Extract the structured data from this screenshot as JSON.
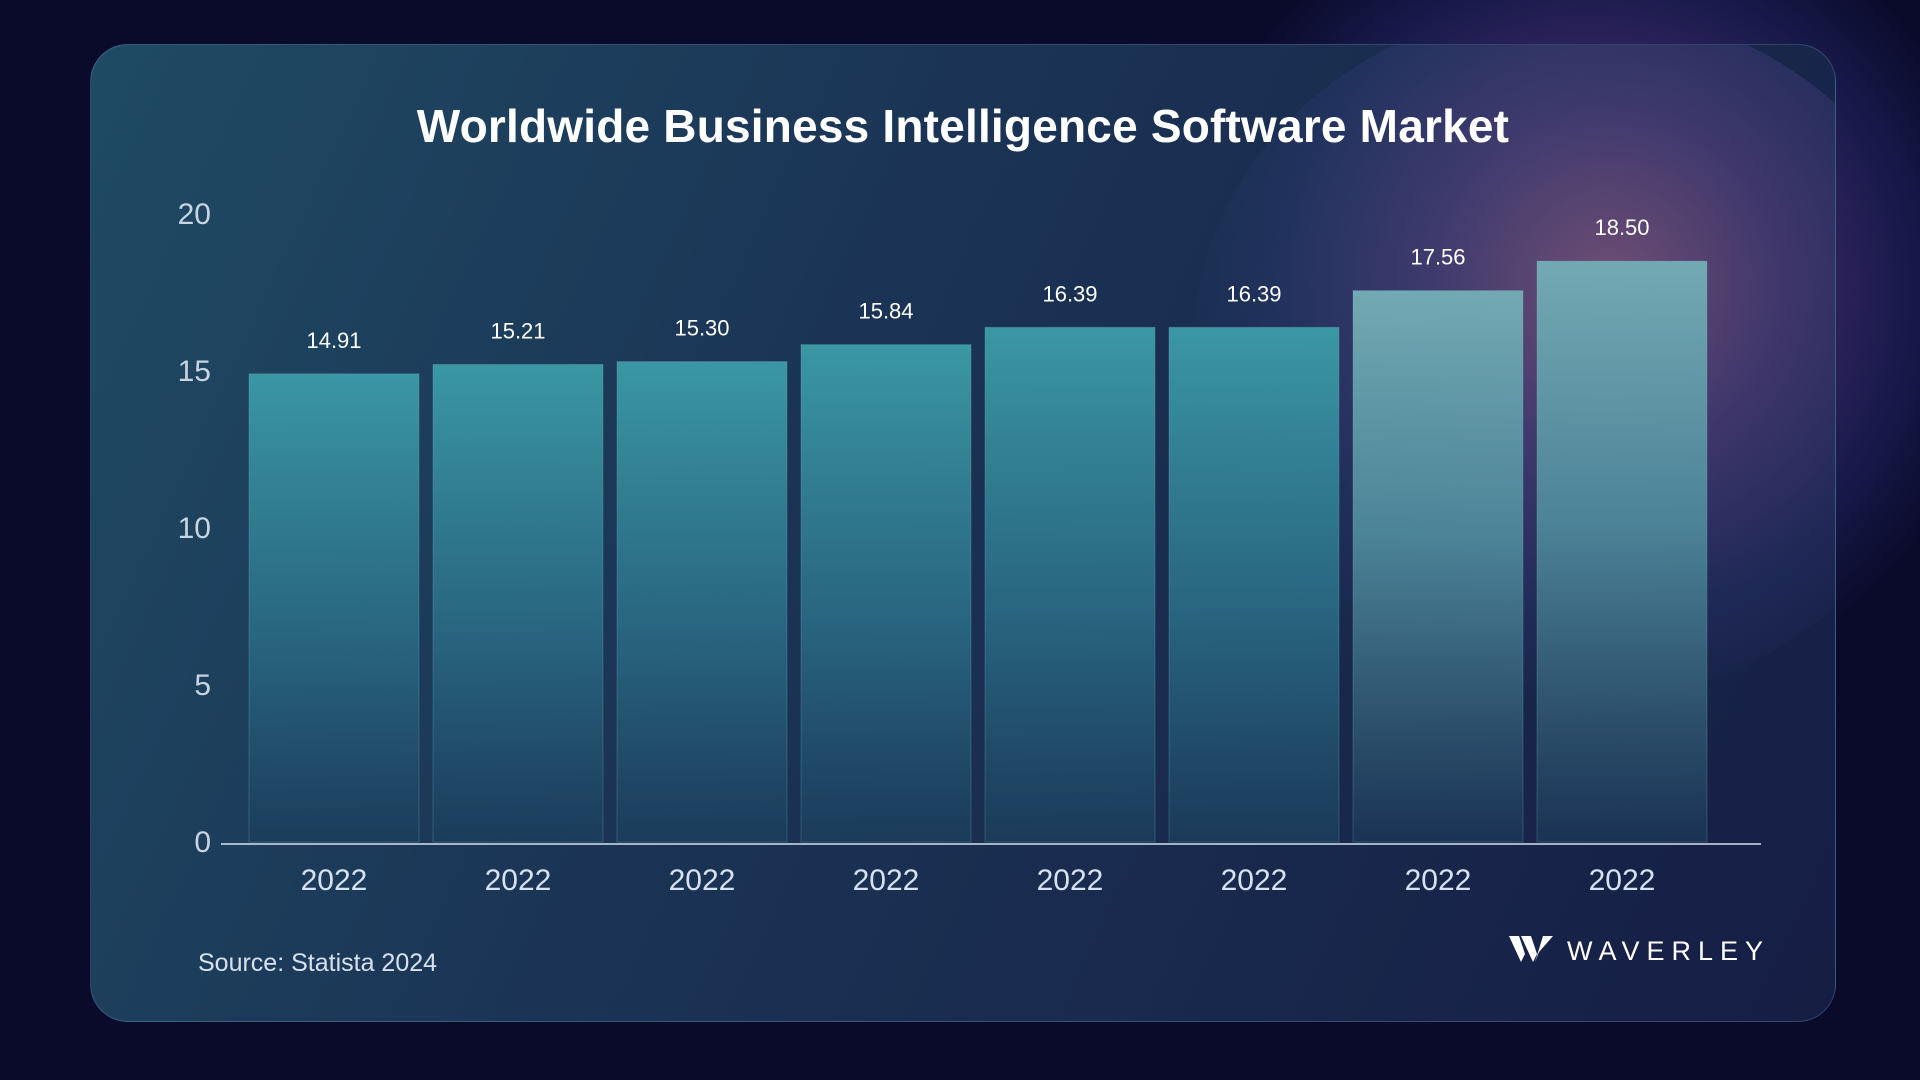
{
  "title": "Worldwide Business Intelligence Software Market",
  "source": "Source: Statista 2024",
  "brand": {
    "name": "WAVERLEY",
    "logo_icon": "waverley-w-logo-icon"
  },
  "colors": {
    "background": "#0a0a2a",
    "bar_top": "#3a97a3",
    "bar_bottom": "#1b3d5c",
    "text": "#ffffff",
    "axis": "#c8d4e2"
  },
  "chart_data": {
    "type": "bar",
    "title": "Worldwide Business Intelligence Software Market",
    "categories": [
      "2022",
      "2022",
      "2022",
      "2022",
      "2022",
      "2022",
      "2022",
      "2022"
    ],
    "values": [
      14.91,
      15.21,
      15.3,
      15.84,
      16.39,
      16.39,
      17.56,
      18.5
    ],
    "data_labels": [
      "14.91",
      "15.21",
      "15.30",
      "15.84",
      "16.39",
      "16.39",
      "17.56",
      "18.50"
    ],
    "ylim": [
      0,
      20
    ],
    "yticks": [
      0,
      5,
      10,
      15,
      20
    ],
    "xlabel": "",
    "ylabel": "",
    "grid": false,
    "legend": "none"
  }
}
